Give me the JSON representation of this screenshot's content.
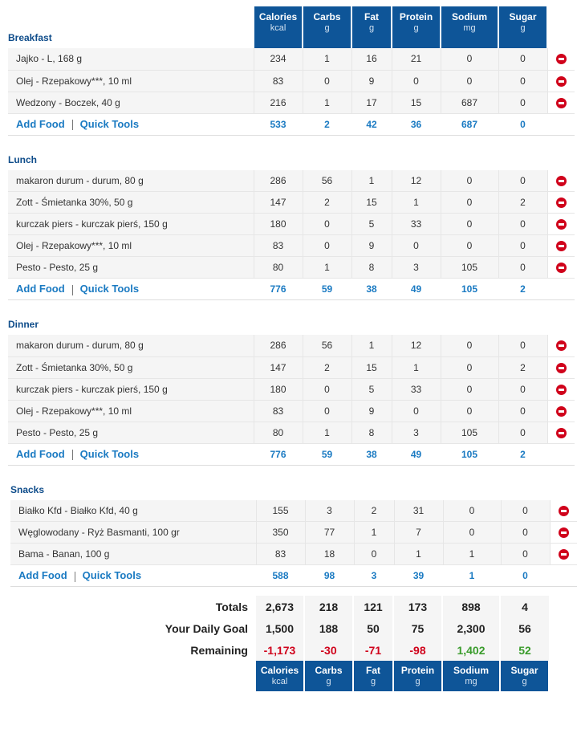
{
  "columns": [
    {
      "name": "Calories",
      "unit": "kcal"
    },
    {
      "name": "Carbs",
      "unit": "g"
    },
    {
      "name": "Fat",
      "unit": "g"
    },
    {
      "name": "Protein",
      "unit": "g"
    },
    {
      "name": "Sodium",
      "unit": "mg"
    },
    {
      "name": "Sugar",
      "unit": "g"
    }
  ],
  "links": {
    "add_food": "Add Food",
    "quick_tools": "Quick Tools"
  },
  "meals": [
    {
      "title": "Breakfast",
      "foods": [
        {
          "name": "Jajko - L, 168 g",
          "values": [
            "234",
            "1",
            "16",
            "21",
            "0",
            "0"
          ]
        },
        {
          "name": "Olej - Rzepakowy***, 10 ml",
          "values": [
            "83",
            "0",
            "9",
            "0",
            "0",
            "0"
          ]
        },
        {
          "name": "Wedzony - Boczek, 40 g",
          "values": [
            "216",
            "1",
            "17",
            "15",
            "687",
            "0"
          ]
        }
      ],
      "totals": [
        "533",
        "2",
        "42",
        "36",
        "687",
        "0"
      ]
    },
    {
      "title": "Lunch",
      "foods": [
        {
          "name": "makaron durum - durum, 80 g",
          "values": [
            "286",
            "56",
            "1",
            "12",
            "0",
            "0"
          ]
        },
        {
          "name": "Zott - Śmietanka 30%, 50 g",
          "values": [
            "147",
            "2",
            "15",
            "1",
            "0",
            "2"
          ]
        },
        {
          "name": "kurczak piers - kurczak pierś, 150 g",
          "values": [
            "180",
            "0",
            "5",
            "33",
            "0",
            "0"
          ]
        },
        {
          "name": "Olej - Rzepakowy***, 10 ml",
          "values": [
            "83",
            "0",
            "9",
            "0",
            "0",
            "0"
          ]
        },
        {
          "name": "Pesto - Pesto, 25 g",
          "values": [
            "80",
            "1",
            "8",
            "3",
            "105",
            "0"
          ]
        }
      ],
      "totals": [
        "776",
        "59",
        "38",
        "49",
        "105",
        "2"
      ]
    },
    {
      "title": "Dinner",
      "foods": [
        {
          "name": "makaron durum - durum, 80 g",
          "values": [
            "286",
            "56",
            "1",
            "12",
            "0",
            "0"
          ]
        },
        {
          "name": "Zott - Śmietanka 30%, 50 g",
          "values": [
            "147",
            "2",
            "15",
            "1",
            "0",
            "2"
          ]
        },
        {
          "name": "kurczak piers - kurczak pierś, 150 g",
          "values": [
            "180",
            "0",
            "5",
            "33",
            "0",
            "0"
          ]
        },
        {
          "name": "Olej - Rzepakowy***, 10 ml",
          "values": [
            "83",
            "0",
            "9",
            "0",
            "0",
            "0"
          ]
        },
        {
          "name": "Pesto - Pesto, 25 g",
          "values": [
            "80",
            "1",
            "8",
            "3",
            "105",
            "0"
          ]
        }
      ],
      "totals": [
        "776",
        "59",
        "38",
        "49",
        "105",
        "2"
      ]
    },
    {
      "title": "Snacks",
      "foods": [
        {
          "name": "Białko Kfd - Białko Kfd, 40 g",
          "values": [
            "155",
            "3",
            "2",
            "31",
            "0",
            "0"
          ]
        },
        {
          "name": "Węglowodany - Ryż Basmanti, 100 gr",
          "values": [
            "350",
            "77",
            "1",
            "7",
            "0",
            "0"
          ]
        },
        {
          "name": "Bama - Banan, 100 g",
          "values": [
            "83",
            "18",
            "0",
            "1",
            "1",
            "0"
          ]
        }
      ],
      "totals": [
        "588",
        "98",
        "3",
        "39",
        "1",
        "0"
      ]
    }
  ],
  "summary": {
    "totals_label": "Totals",
    "totals": [
      "2,673",
      "218",
      "121",
      "173",
      "898",
      "4"
    ],
    "goal_label": "Your Daily Goal",
    "goal": [
      "1,500",
      "188",
      "50",
      "75",
      "2,300",
      "56"
    ],
    "remaining_label": "Remaining",
    "remaining": [
      "-1,173",
      "-30",
      "-71",
      "-98",
      "1,402",
      "52"
    ]
  },
  "colors": {
    "header_bg": "#0e5598",
    "meal_title": "#0e4c8a",
    "link": "#1a7ac2",
    "negative": "#d0021b",
    "positive": "#3a9c2c",
    "delete_icon": "#d0021b"
  },
  "icons": {
    "delete": "remove-circle-icon"
  }
}
